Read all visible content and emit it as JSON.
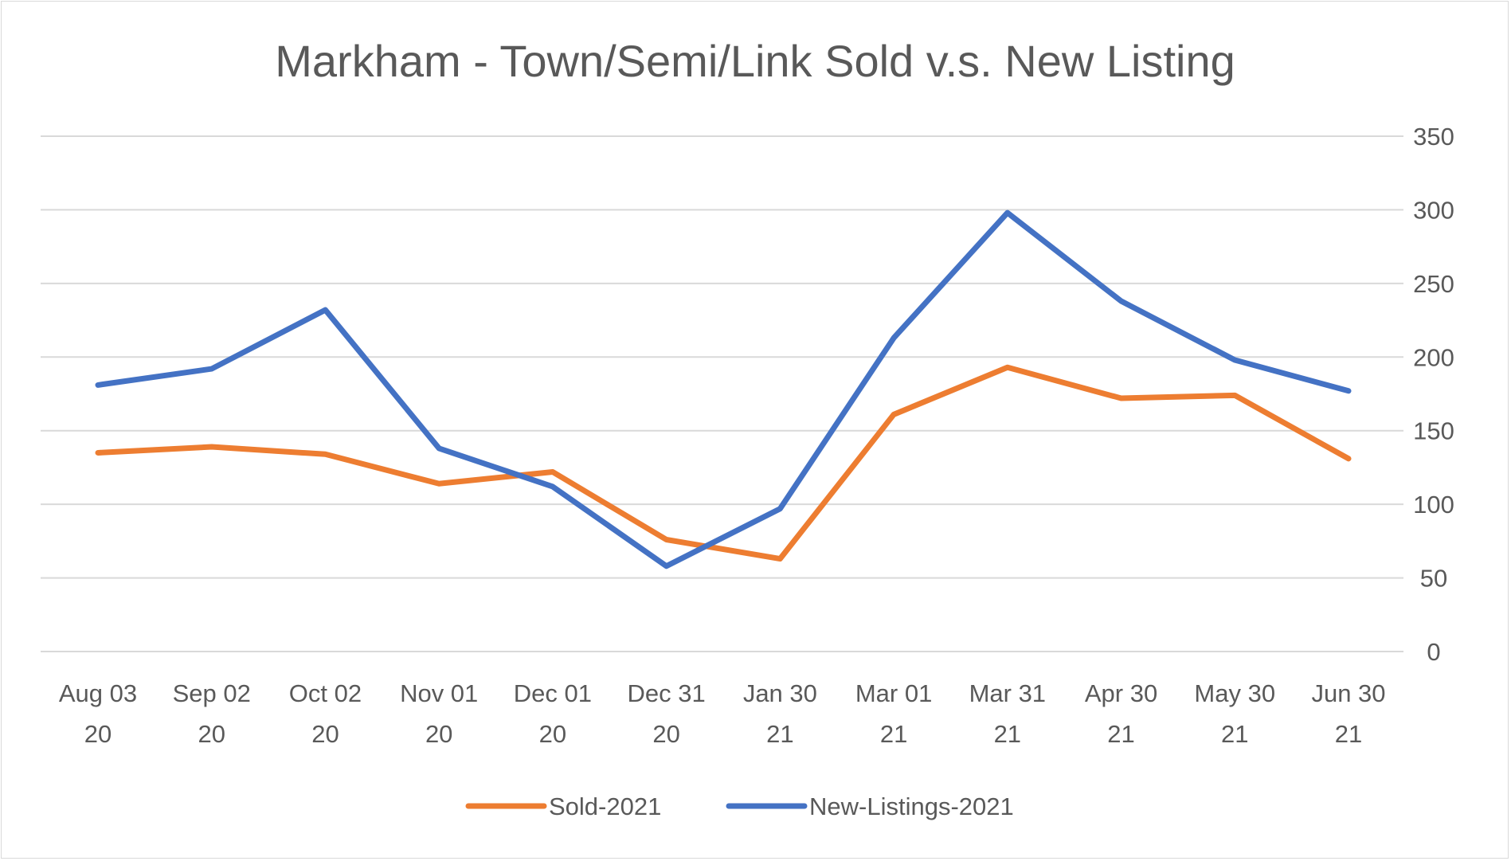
{
  "chart_data": {
    "type": "line",
    "title": "Markham - Town/Semi/Link Sold v.s. New Listing",
    "xlabel": "",
    "ylabel": "",
    "categories": [
      [
        "Aug 03",
        "20"
      ],
      [
        "Sep 02",
        "20"
      ],
      [
        "Oct 02",
        "20"
      ],
      [
        "Nov 01",
        "20"
      ],
      [
        "Dec 01",
        "20"
      ],
      [
        "Dec 31",
        "20"
      ],
      [
        "Jan 30",
        "21"
      ],
      [
        "Mar 01",
        "21"
      ],
      [
        "Mar 31",
        "21"
      ],
      [
        "Apr 30",
        "21"
      ],
      [
        "May 30",
        "21"
      ],
      [
        "Jun 30",
        "21"
      ]
    ],
    "ylim": [
      0,
      350
    ],
    "yticks": [
      0,
      50,
      100,
      150,
      200,
      250,
      300,
      350
    ],
    "y_axis_side": "right",
    "grid": true,
    "legend_position": "bottom",
    "series": [
      {
        "name": "Sold-2021",
        "color": "#ED7D31",
        "values": [
          135,
          139,
          134,
          114,
          122,
          76,
          63,
          161,
          193,
          172,
          174,
          131
        ]
      },
      {
        "name": "New-Listings-2021",
        "color": "#4472C4",
        "values": [
          181,
          192,
          232,
          138,
          112,
          58,
          97,
          213,
          298,
          238,
          198,
          177
        ]
      }
    ]
  }
}
